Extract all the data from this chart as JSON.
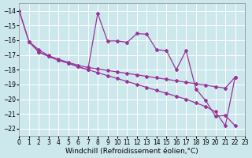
{
  "xlabel": "Windchill (Refroidissement éolien,°C)",
  "xlim": [
    0,
    23
  ],
  "ylim": [
    -22.5,
    -13.5
  ],
  "yticks": [
    -22,
    -21,
    -20,
    -19,
    -18,
    -17,
    -16,
    -15,
    -14
  ],
  "xticks": [
    0,
    1,
    2,
    3,
    4,
    5,
    6,
    7,
    8,
    9,
    10,
    11,
    12,
    13,
    14,
    15,
    16,
    17,
    18,
    19,
    20,
    21,
    22,
    23
  ],
  "line_color": "#993399",
  "bg_color": "#cde8ed",
  "grid_color": "#ffffff",
  "marker": "D",
  "marker_size": 2.0,
  "linewidth": 0.9,
  "tick_fontsize": 5.5,
  "xlabel_fontsize": 6.5,
  "line1_x": [
    0,
    1,
    2,
    3,
    4,
    5,
    6,
    7,
    8,
    9,
    10,
    11,
    12,
    13,
    14,
    15,
    16,
    17,
    18,
    19,
    20,
    21,
    22
  ],
  "line1_y": [
    -14.0,
    -16.1,
    -16.8,
    -17.1,
    -17.35,
    -17.55,
    -17.8,
    -18.0,
    -14.2,
    -16.05,
    -16.05,
    -16.15,
    -15.55,
    -15.6,
    -16.65,
    -16.7,
    -18.0,
    -16.7,
    -19.3,
    -20.1,
    -21.15,
    -21.1,
    -21.8
  ],
  "line2_x": [
    1,
    2,
    3,
    4,
    5,
    6,
    7,
    8,
    9,
    10,
    11,
    12,
    13,
    14,
    15,
    16,
    17,
    18,
    19,
    20,
    21,
    22
  ],
  "line2_y": [
    -16.1,
    -16.65,
    -17.05,
    -17.3,
    -17.5,
    -17.7,
    -17.85,
    -17.95,
    -18.05,
    -18.15,
    -18.25,
    -18.35,
    -18.45,
    -18.55,
    -18.65,
    -18.75,
    -18.85,
    -18.95,
    -19.05,
    -19.15,
    -19.25,
    -18.5
  ],
  "line3_x": [
    0,
    1,
    2,
    3,
    4,
    5,
    6,
    7,
    8,
    9,
    10,
    11,
    12,
    13,
    14,
    15,
    16,
    17,
    18,
    19,
    20,
    21,
    22
  ],
  "line3_y": [
    -14.0,
    -16.1,
    -16.8,
    -17.1,
    -17.35,
    -17.55,
    -17.8,
    -18.0,
    -18.2,
    -18.4,
    -18.6,
    -18.8,
    -19.0,
    -19.2,
    -19.4,
    -19.6,
    -19.8,
    -20.0,
    -20.25,
    -20.5,
    -20.85,
    -21.8,
    -18.5
  ]
}
